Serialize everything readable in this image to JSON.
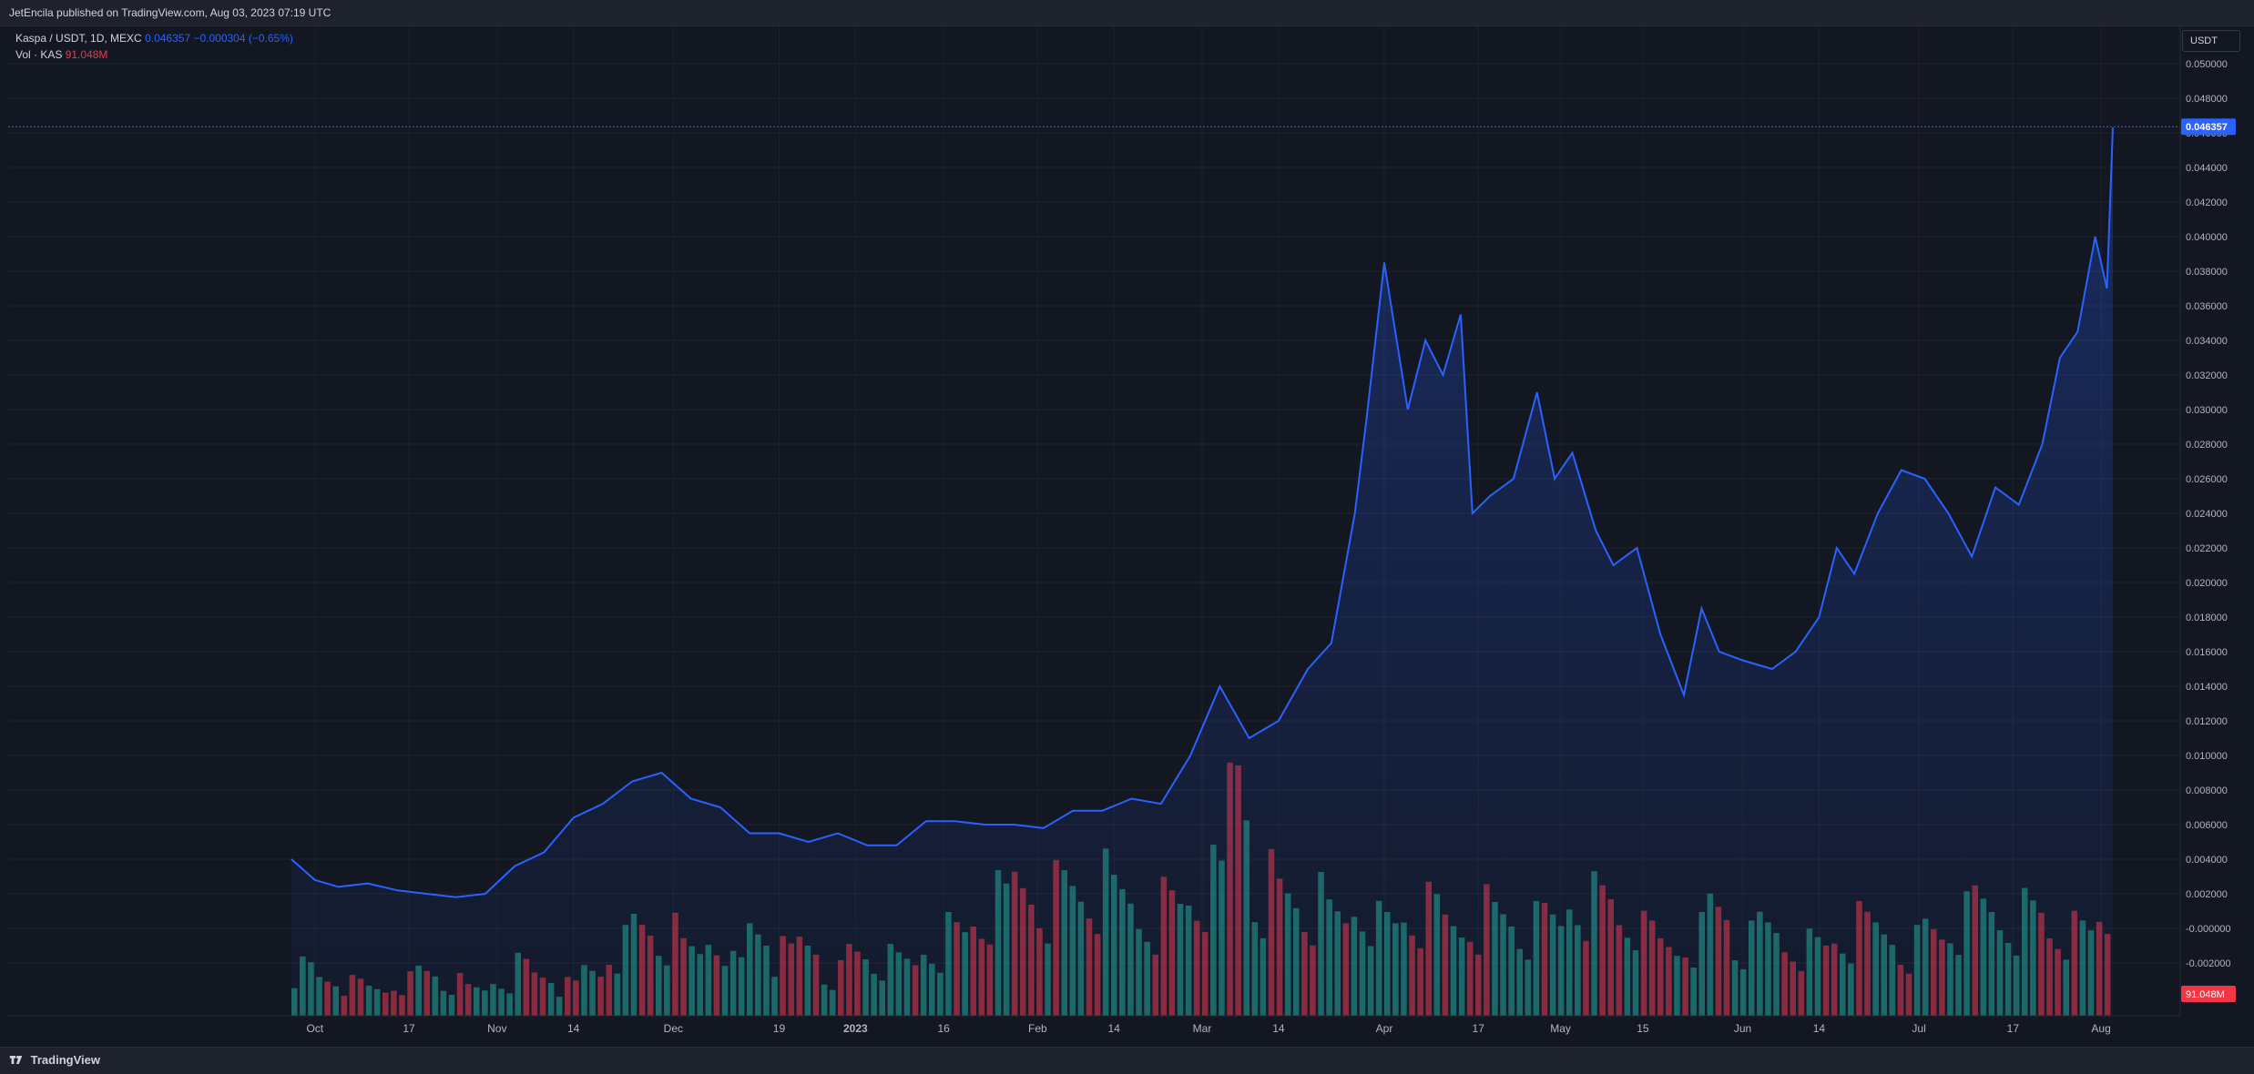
{
  "header": {
    "publisher_text": "JetEncila published on TradingView.com, Aug 03, 2023 07:19 UTC"
  },
  "legend": {
    "symbol": "Kaspa / USDT, 1D, MEXC",
    "price": "0.046357",
    "change": "−0.000304 (−0.65%)",
    "vol_label": "Vol · KAS",
    "vol_value": "91.048M"
  },
  "currency_button": "USDT",
  "footer": {
    "brand": "TradingView"
  },
  "colors": {
    "line": "#2962ff",
    "up": "#22ab94",
    "down": "#f23645",
    "bg": "#131722",
    "grid": "#2a2e39"
  },
  "chart_data": {
    "type": "area",
    "x": [
      "2022-09-27",
      "2022-10-01",
      "2022-10-05",
      "2022-10-10",
      "2022-10-15",
      "2022-10-20",
      "2022-10-25",
      "2022-10-30",
      "2022-11-04",
      "2022-11-09",
      "2022-11-14",
      "2022-11-19",
      "2022-11-24",
      "2022-11-29",
      "2022-12-04",
      "2022-12-09",
      "2022-12-14",
      "2022-12-19",
      "2022-12-24",
      "2022-12-29",
      "2023-01-03",
      "2023-01-08",
      "2023-01-13",
      "2023-01-18",
      "2023-01-23",
      "2023-01-28",
      "2023-02-02",
      "2023-02-07",
      "2023-02-12",
      "2023-02-17",
      "2023-02-22",
      "2023-02-27",
      "2023-03-04",
      "2023-03-09",
      "2023-03-14",
      "2023-03-19",
      "2023-03-23",
      "2023-03-27",
      "2023-03-29",
      "2023-04-01",
      "2023-04-05",
      "2023-04-08",
      "2023-04-11",
      "2023-04-14",
      "2023-04-16",
      "2023-04-19",
      "2023-04-23",
      "2023-04-27",
      "2023-04-30",
      "2023-05-03",
      "2023-05-07",
      "2023-05-10",
      "2023-05-14",
      "2023-05-18",
      "2023-05-22",
      "2023-05-25",
      "2023-05-28",
      "2023-06-01",
      "2023-06-06",
      "2023-06-10",
      "2023-06-14",
      "2023-06-17",
      "2023-06-20",
      "2023-06-24",
      "2023-06-28",
      "2023-07-02",
      "2023-07-06",
      "2023-07-10",
      "2023-07-14",
      "2023-07-18",
      "2023-07-22",
      "2023-07-25",
      "2023-07-28",
      "2023-07-31",
      "2023-08-02",
      "2023-08-03"
    ],
    "series": [
      {
        "values": [
          0.004,
          0.0028,
          0.0024,
          0.0026,
          0.0022,
          0.002,
          0.0018,
          0.002,
          0.0036,
          0.0044,
          0.0064,
          0.0072,
          0.0085,
          0.009,
          0.0075,
          0.007,
          0.0055,
          0.0055,
          0.005,
          0.0055,
          0.0048,
          0.0048,
          0.0062,
          0.0062,
          0.006,
          0.006,
          0.0058,
          0.0068,
          0.0068,
          0.0075,
          0.0072,
          0.01,
          0.014,
          0.011,
          0.012,
          0.015,
          0.0165,
          0.024,
          0.0295,
          0.0385,
          0.03,
          0.034,
          0.032,
          0.0355,
          0.024,
          0.025,
          0.026,
          0.031,
          0.026,
          0.0275,
          0.023,
          0.021,
          0.022,
          0.017,
          0.0135,
          0.0185,
          0.016,
          0.0155,
          0.015,
          0.016,
          0.018,
          0.022,
          0.0205,
          0.024,
          0.0265,
          0.026,
          0.024,
          0.0215,
          0.0255,
          0.0245,
          0.028,
          0.033,
          0.0345,
          0.04,
          0.037,
          0.0463
        ]
      }
    ],
    "ylim": [
      -0.002,
      0.051
    ],
    "y_ticks": [
      "0.050000",
      "0.048000",
      "0.046000",
      "0.044000",
      "0.042000",
      "0.040000",
      "0.038000",
      "0.036000",
      "0.034000",
      "0.032000",
      "0.030000",
      "0.028000",
      "0.026000",
      "0.024000",
      "0.022000",
      "0.020000",
      "0.018000",
      "0.016000",
      "0.014000",
      "0.012000",
      "0.010000",
      "0.008000",
      "0.006000",
      "0.004000",
      "0.002000",
      "-0.000000",
      "-0.002000"
    ],
    "x_tick_labels": [
      "Oct",
      "17",
      "Nov",
      "14",
      "Dec",
      "19",
      "2023",
      "16",
      "Feb",
      "14",
      "Mar",
      "14",
      "Apr",
      "17",
      "May",
      "15",
      "Jun",
      "14",
      "Jul",
      "17",
      "Aug"
    ],
    "last_price_label": "0.046357",
    "volume_label": "91.048M",
    "volume": {
      "values": [
        3.2,
        2.6,
        2.1,
        1.9,
        2.4,
        3.0,
        2.2,
        1.8,
        2.6,
        3.4,
        2.9,
        2.0,
        3.2,
        4.9,
        6.1,
        5.3,
        4.4,
        5.8,
        3.5,
        6.2,
        4.1,
        5.0,
        3.0,
        4.3,
        3.7,
        3.6,
        5.0,
        5.6,
        6.8,
        7.5,
        9.1,
        8.4,
        8.7,
        8.6,
        8.0,
        7.1,
        7.5,
        8.4,
        8.8,
        16.0,
        9.0,
        8.2,
        7.4,
        6.6,
        8.1,
        6.2,
        7.1,
        6.9,
        6.4,
        7.1,
        6.8,
        5.9,
        6.4,
        8.7,
        7.8,
        6.9,
        5.4,
        4.9,
        5.6,
        7.3,
        4.9,
        5.9,
        5.2,
        4.7,
        5.5,
        5.9,
        5.8,
        4.9,
        5.8,
        6.4,
        7.4,
        7.0,
        6.9,
        5.9,
        5.4,
        6.7
      ],
      "up": [
        true,
        false,
        true,
        false,
        true,
        true,
        false,
        true,
        false,
        true,
        false,
        true,
        true,
        false,
        true,
        false,
        true,
        true,
        false,
        true,
        false,
        true,
        false,
        true,
        true,
        false,
        true,
        true,
        false,
        true,
        true,
        false,
        true,
        false,
        true,
        true,
        false,
        true,
        false,
        true,
        false,
        true,
        false,
        true,
        false,
        true,
        true,
        false,
        true,
        false,
        true,
        false,
        true,
        false,
        true,
        true,
        false,
        true,
        false,
        true,
        true,
        false,
        true,
        true,
        false,
        true,
        false,
        true,
        true,
        false,
        true,
        false,
        true,
        false,
        true,
        true
      ]
    }
  }
}
